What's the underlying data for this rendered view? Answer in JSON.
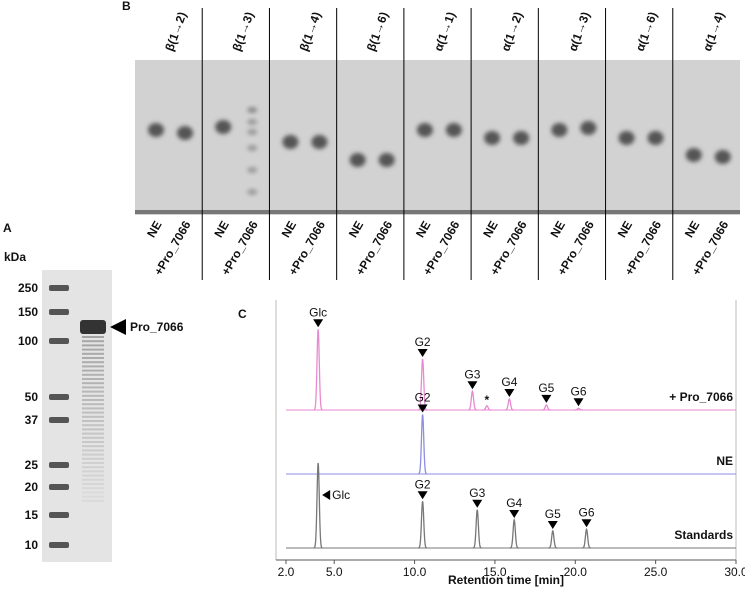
{
  "panel_a": {
    "label": "A",
    "unit": "kDa",
    "ladder": [
      250,
      150,
      100,
      50,
      37,
      25,
      20,
      15,
      10
    ],
    "band_label": "Pro_7066"
  },
  "panel_b": {
    "label": "B",
    "linkages": [
      "β(1→2)",
      "β(1→3)",
      "β(1→4)",
      "β(1→6)",
      "α(1→1)",
      "α(1→2)",
      "α(1→3)",
      "α(1→6)",
      "α(1→4)"
    ],
    "lanes": [
      "NE",
      "+Pro_7066"
    ]
  },
  "panel_c": {
    "label": "C",
    "x_label": "Retention time [min]",
    "xlim": [
      2,
      30
    ],
    "xticks": [
      {
        "value": 2,
        "label": "2.0"
      },
      {
        "value": 5,
        "label": "5.0"
      },
      {
        "value": 10,
        "label": "10.0"
      },
      {
        "value": 15,
        "label": "15.0"
      },
      {
        "value": 20,
        "label": "20.0"
      },
      {
        "value": 25,
        "label": "25.0"
      },
      {
        "value": 30,
        "label": "30.0"
      }
    ],
    "traces": [
      {
        "name": "+ Pro_7066",
        "color": "#e88ad0",
        "peaks": [
          {
            "label": "Glc",
            "time": 4.0,
            "height": 0.95
          },
          {
            "label": "G2",
            "time": 10.5,
            "height": 0.6
          },
          {
            "label": "G3",
            "time": 13.6,
            "height": 0.22
          },
          {
            "label": "*",
            "time": 14.5,
            "height": 0.05
          },
          {
            "label": "G4",
            "time": 15.9,
            "height": 0.13
          },
          {
            "label": "G5",
            "time": 18.2,
            "height": 0.06
          },
          {
            "label": "G6",
            "time": 20.2,
            "height": 0.02
          }
        ]
      },
      {
        "name": "NE",
        "color": "#8d8ee0",
        "peaks": [
          {
            "label": "G2",
            "time": 10.5,
            "height": 0.7
          }
        ]
      },
      {
        "name": "Standards",
        "color": "#777777",
        "peaks": [
          {
            "label": "Glc",
            "time": 4.0,
            "height": 1.0,
            "pointer": "left"
          },
          {
            "label": "G2",
            "time": 10.5,
            "height": 0.55
          },
          {
            "label": "G3",
            "time": 13.9,
            "height": 0.45
          },
          {
            "label": "G4",
            "time": 16.2,
            "height": 0.33
          },
          {
            "label": "G5",
            "time": 18.6,
            "height": 0.2
          },
          {
            "label": "G6",
            "time": 20.7,
            "height": 0.22
          }
        ]
      }
    ]
  }
}
